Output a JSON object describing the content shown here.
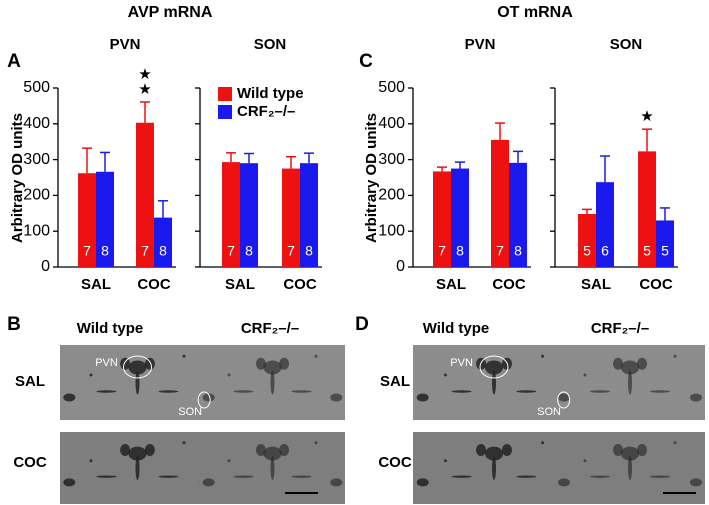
{
  "figure": {
    "panels": [
      {
        "letter": "A",
        "title": "AVP mRNA"
      },
      {
        "letter": "C",
        "title": "OT mRNA"
      }
    ],
    "image_panels": [
      {
        "letter": "B",
        "columns": [
          "Wild type",
          "CRF₂–/–"
        ],
        "rows": [
          "SAL",
          "COC"
        ],
        "regions": [
          "PVN",
          "SON"
        ]
      },
      {
        "letter": "D",
        "columns": [
          "Wild type",
          "CRF₂–/–"
        ],
        "rows": [
          "SAL",
          "COC"
        ],
        "regions": [
          "PVN",
          "SON"
        ]
      }
    ]
  },
  "chart_data": [
    {
      "type": "bar",
      "title": "PVN",
      "ylabel": "Arbitrary OD units",
      "categories": [
        "SAL",
        "COC"
      ],
      "series": [
        {
          "name": "Wild type",
          "color": "#ee1111",
          "values": [
            262,
            403
          ],
          "errors": [
            70,
            58
          ],
          "counts": [
            7,
            7
          ],
          "stars": [
            null,
            "★★"
          ]
        },
        {
          "name": "CRF₂–/–",
          "color": "#1a1aee",
          "values": [
            266,
            138
          ],
          "errors": [
            54,
            47
          ],
          "counts": [
            8,
            8
          ]
        }
      ],
      "ylim": [
        0,
        500
      ],
      "yticks": [
        0,
        100,
        200,
        300,
        400,
        500
      ]
    },
    {
      "type": "bar",
      "title": "SON",
      "categories": [
        "SAL",
        "COC"
      ],
      "legend": "upper left",
      "series": [
        {
          "color": "#ee1111",
          "values": [
            293,
            275
          ],
          "errors": [
            26,
            33
          ],
          "counts": [
            7,
            7
          ]
        },
        {
          "color": "#1a1aee",
          "values": [
            290,
            290
          ],
          "errors": [
            27,
            28
          ],
          "counts": [
            8,
            8
          ]
        }
      ],
      "ylim": [
        0,
        500
      ],
      "yticks": [
        0,
        100,
        200,
        300,
        400,
        500
      ]
    },
    {
      "type": "bar",
      "title": "PVN",
      "ylabel": "Arbitrary OD units",
      "categories": [
        "SAL",
        "COC"
      ],
      "series": [
        {
          "color": "#ee1111",
          "values": [
            267,
            355
          ],
          "errors": [
            12,
            47
          ],
          "counts": [
            7,
            7
          ]
        },
        {
          "color": "#1a1aee",
          "values": [
            275,
            291
          ],
          "errors": [
            18,
            32
          ],
          "counts": [
            8,
            8
          ]
        }
      ],
      "ylim": [
        0,
        500
      ],
      "yticks": [
        0,
        100,
        200,
        300,
        400,
        500
      ]
    },
    {
      "type": "bar",
      "title": "SON",
      "categories": [
        "SAL",
        "COC"
      ],
      "series": [
        {
          "color": "#ee1111",
          "values": [
            148,
            323
          ],
          "errors": [
            13,
            62
          ],
          "counts": [
            5,
            5
          ],
          "stars": [
            null,
            "★"
          ]
        },
        {
          "color": "#1a1aee",
          "values": [
            237,
            130
          ],
          "errors": [
            73,
            35
          ],
          "counts": [
            6,
            5
          ]
        }
      ],
      "ylim": [
        0,
        500
      ],
      "yticks": [
        0,
        100,
        200,
        300,
        400,
        500
      ]
    }
  ]
}
